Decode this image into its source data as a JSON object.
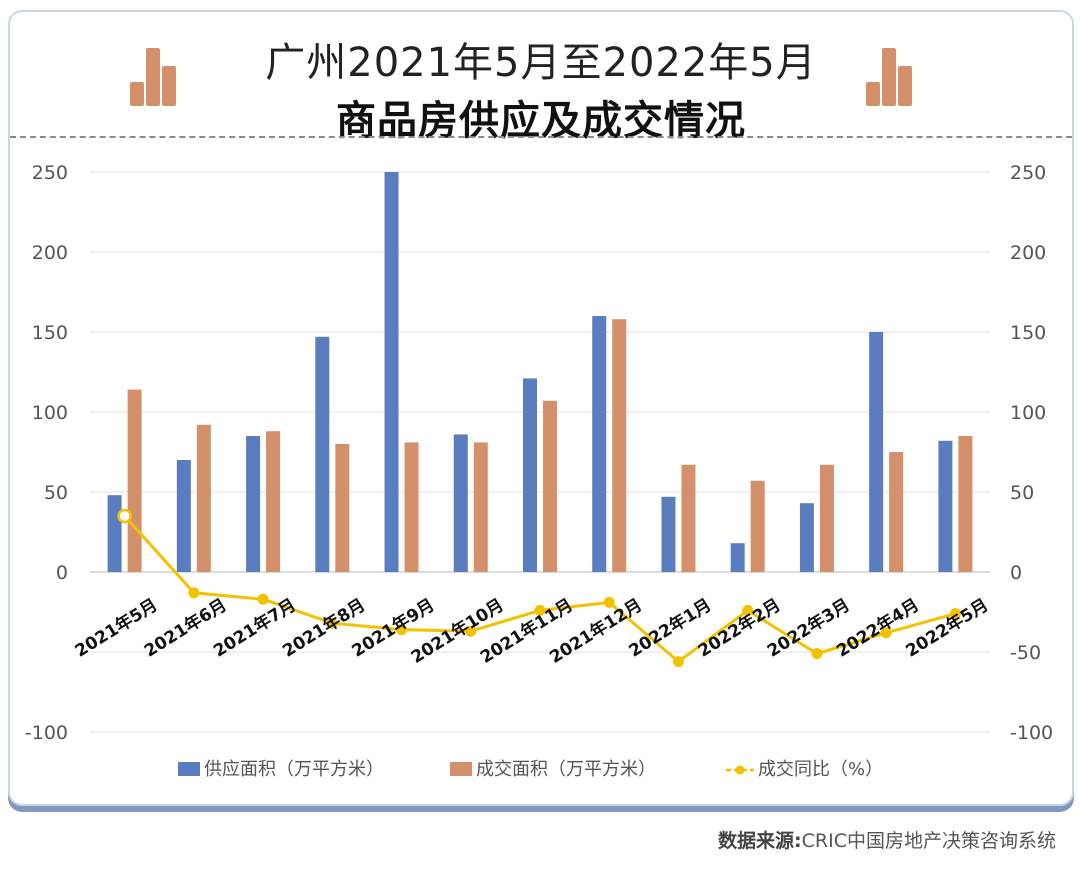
{
  "title": {
    "line1": "广州2021年5月至2022年5月",
    "line2": "商品房供应及成交情况"
  },
  "source": {
    "label": "数据来源:",
    "text": "CRIC中国房地产决策咨询系统"
  },
  "colors": {
    "supply": "#5a7dc0",
    "deal": "#d4906a",
    "yoy": "#f2c200",
    "deco": "#d4906a"
  },
  "chart_data": {
    "type": "bar",
    "categories": [
      "2021年5月",
      "2021年6月",
      "2021年7月",
      "2021年8月",
      "2021年9月",
      "2021年10月",
      "2021年11月",
      "2021年12月",
      "2022年1月",
      "2022年2月",
      "2022年3月",
      "2022年4月",
      "2022年5月"
    ],
    "series": [
      {
        "name": "供应面积（万平方米）",
        "kind": "bar",
        "axis": "left",
        "values": [
          48,
          70,
          85,
          147,
          250,
          86,
          121,
          160,
          47,
          18,
          43,
          150,
          82
        ]
      },
      {
        "name": "成交面积（万平方米）",
        "kind": "bar",
        "axis": "left",
        "values": [
          114,
          92,
          88,
          80,
          81,
          81,
          107,
          158,
          67,
          57,
          67,
          75,
          85
        ]
      },
      {
        "name": "成交同比（%）",
        "kind": "line",
        "axis": "right",
        "values": [
          35,
          -13,
          -17,
          -32,
          -36,
          -37,
          -24,
          -19,
          -56,
          -24,
          -51,
          -38,
          -26
        ]
      }
    ],
    "y_left": {
      "min": -100,
      "max": 250,
      "ticks": [
        250,
        200,
        150,
        100,
        50,
        0,
        -100
      ]
    },
    "y_right": {
      "min": -100,
      "max": 250,
      "ticks": [
        250,
        200,
        150,
        100,
        50,
        0,
        -50,
        -100
      ]
    },
    "grid": true,
    "legend_position": "bottom"
  }
}
